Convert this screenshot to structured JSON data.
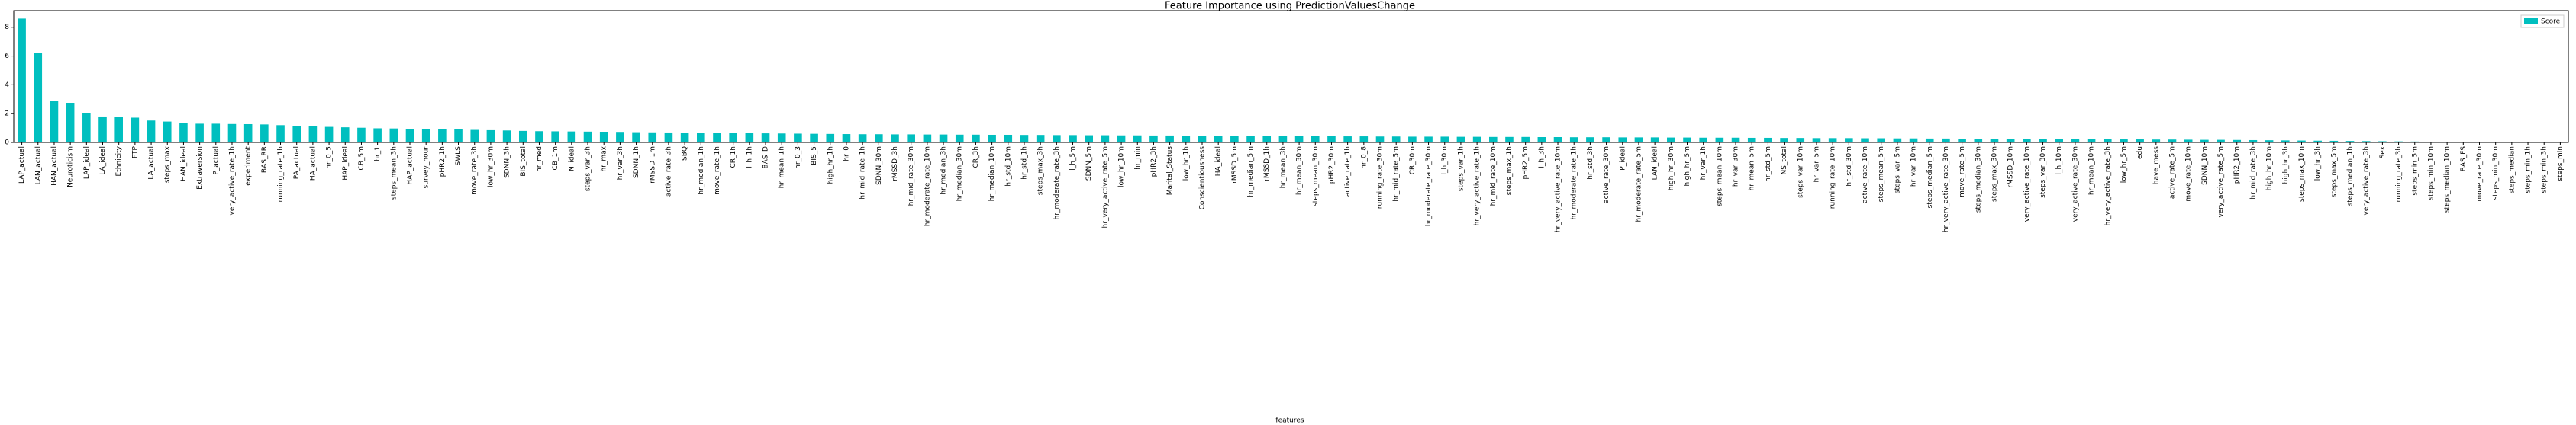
{
  "chart_data": {
    "type": "bar",
    "title": "Feature Importance using PredictionValuesChange",
    "x_label": "features",
    "legend": "upper right",
    "series": [
      {
        "name": "Score",
        "color": "#00bfbf",
        "values": [
          8.6,
          6.2,
          2.9,
          2.75,
          2.05,
          1.8,
          1.75,
          1.72,
          1.52,
          1.45,
          1.35,
          1.3,
          1.3,
          1.28,
          1.27,
          1.25,
          1.2,
          1.15,
          1.13,
          1.08,
          1.05,
          1.02,
          0.98,
          0.97,
          0.95,
          0.94,
          0.92,
          0.9,
          0.87,
          0.85,
          0.83,
          0.8,
          0.78,
          0.77,
          0.76,
          0.75,
          0.74,
          0.73,
          0.71,
          0.7,
          0.69,
          0.68,
          0.67,
          0.66,
          0.65,
          0.64,
          0.63,
          0.62,
          0.61,
          0.6,
          0.59,
          0.58,
          0.57,
          0.57,
          0.56,
          0.56,
          0.55,
          0.55,
          0.54,
          0.54,
          0.53,
          0.53,
          0.52,
          0.52,
          0.51,
          0.51,
          0.5,
          0.5,
          0.49,
          0.49,
          0.48,
          0.48,
          0.47,
          0.47,
          0.46,
          0.46,
          0.45,
          0.45,
          0.44,
          0.44,
          0.43,
          0.43,
          0.42,
          0.42,
          0.41,
          0.41,
          0.4,
          0.4,
          0.4,
          0.39,
          0.39,
          0.38,
          0.38,
          0.38,
          0.37,
          0.37,
          0.36,
          0.36,
          0.36,
          0.35,
          0.35,
          0.35,
          0.34,
          0.34,
          0.33,
          0.33,
          0.33,
          0.32,
          0.32,
          0.31,
          0.31,
          0.3,
          0.3,
          0.3,
          0.29,
          0.29,
          0.28,
          0.28,
          0.27,
          0.27,
          0.26,
          0.26,
          0.25,
          0.25,
          0.24,
          0.24,
          0.23,
          0.23,
          0.22,
          0.22,
          0.21,
          0.21,
          0.2,
          0.2,
          0.19,
          0.18,
          0.18,
          0.17,
          0.16,
          0.15,
          0.14,
          0.13,
          0.12,
          0.11,
          0.1,
          0.09,
          0.08,
          0.07,
          0.06,
          0.05,
          0.04,
          0.04,
          0.03,
          0.02,
          0.02,
          0.01,
          0.01,
          0.01
        ]
      }
    ],
    "categories": [
      "LAP_actual",
      "LAN_actual",
      "HAN_actual",
      "Neuroticism",
      "LAP_ideal",
      "LA_ideal",
      "Ethnicity",
      "FTP",
      "LA_actual",
      "steps_max",
      "HAN_ideal",
      "Extraversion",
      "P_actual",
      "very_active_rate_1h",
      "experiment",
      "BAS_RR",
      "running_rate_1h",
      "PA_actual",
      "HA_actual",
      "hr_0_5",
      "HAP_ideal",
      "CB_5m",
      "hr_1",
      "steps_mean_3h",
      "HAP_actual",
      "survey_hour",
      "pHR2_1h",
      "SWLS",
      "move_rate_3h",
      "low_hr_30m",
      "SDNN_3h",
      "BIS_total",
      "hr_med",
      "CB_1m",
      "N_ideal",
      "steps_var_3h",
      "hr_max",
      "hr_var_3h",
      "SDNN_1h",
      "rMSSD_1m",
      "active_rate_3h",
      "SBQ",
      "hr_median_1h",
      "move_rate_1h",
      "CR_1h",
      "l_h_1h",
      "BAS_D",
      "hr_mean_1h",
      "hr_0_3",
      "BIS_5",
      "high_hr_1h",
      "hr_0",
      "hr_mid_rate_1h",
      "SDNN_30m",
      "rMSSD_3h",
      "hr_mid_rate_30m",
      "hr_moderate_rate_10m",
      "hr_median_3h",
      "hr_median_30m",
      "CR_3h",
      "hr_median_10m",
      "hr_std_10m",
      "hr_std_1h",
      "steps_max_3h",
      "hr_moderate_rate_3h",
      "l_h_5m",
      "SDNN_5m",
      "hr_very_active_rate_5m",
      "low_hr_10m",
      "hr_min",
      "pHR2_3h",
      "Marital_Status",
      "low_hr_1h",
      "Conscientiousness",
      "HA_ideal",
      "rMSSD_5m",
      "hr_median_5m",
      "rMSSD_1h",
      "hr_mean_3h",
      "hr_mean_30m",
      "steps_mean_30m",
      "pHR2_30m",
      "active_rate_1h",
      "hr_0_8",
      "running_rate_30m",
      "hr_mid_rate_5m",
      "CR_30m",
      "hr_moderate_rate_30m",
      "l_h_30m",
      "steps_var_1h",
      "hr_very_active_rate_1h",
      "hr_mid_rate_10m",
      "steps_max_1h",
      "pHR2_5m",
      "l_h_3h",
      "hr_very_active_rate_10m",
      "hr_moderate_rate_1h",
      "hr_std_3h",
      "active_rate_30m",
      "P_ideal",
      "hr_moderate_rate_5m",
      "LAN_ideal",
      "high_hr_30m",
      "high_hr_5m",
      "hr_var_1h",
      "steps_mean_10m",
      "hr_var_30m",
      "hr_mean_5m",
      "hr_std_5m",
      "NS_total",
      "steps_var_10m",
      "hr_var_5m",
      "running_rate_10m",
      "hr_std_30m",
      "active_rate_10m",
      "steps_mean_5m",
      "steps_var_5m",
      "hr_var_10m",
      "steps_median_5m",
      "hr_very_active_rate_30m",
      "move_rate_5m",
      "steps_median_30m",
      "steps_max_30m",
      "rMSSD_10m",
      "very_active_rate_10m",
      "steps_var_30m",
      "l_h_10m",
      "very_active_rate_30m",
      "hr_mean_10m",
      "hr_very_active_rate_3h",
      "low_hr_5m",
      "edu",
      "have_mess",
      "active_rate_5m",
      "move_rate_10m",
      "SDNN_10m",
      "very_active_rate_5m",
      "pHR2_10m",
      "hr_mid_rate_3h",
      "high_hr_10m",
      "high_hr_3h",
      "steps_max_10m",
      "low_hr_3h",
      "steps_max_5m",
      "steps_median_1h",
      "very_active_rate_3h",
      "Sex",
      "running_rate_3h",
      "steps_min_5m",
      "steps_min_10m",
      "steps_median_10m",
      "BAS_FS",
      "move_rate_30m",
      "steps_min_30m",
      "steps_median",
      "steps_min_1h",
      "steps_min_3h",
      "steps_min"
    ],
    "ylim": [
      0,
      9.15
    ],
    "yticks": [
      0,
      2,
      4,
      6,
      8
    ]
  }
}
